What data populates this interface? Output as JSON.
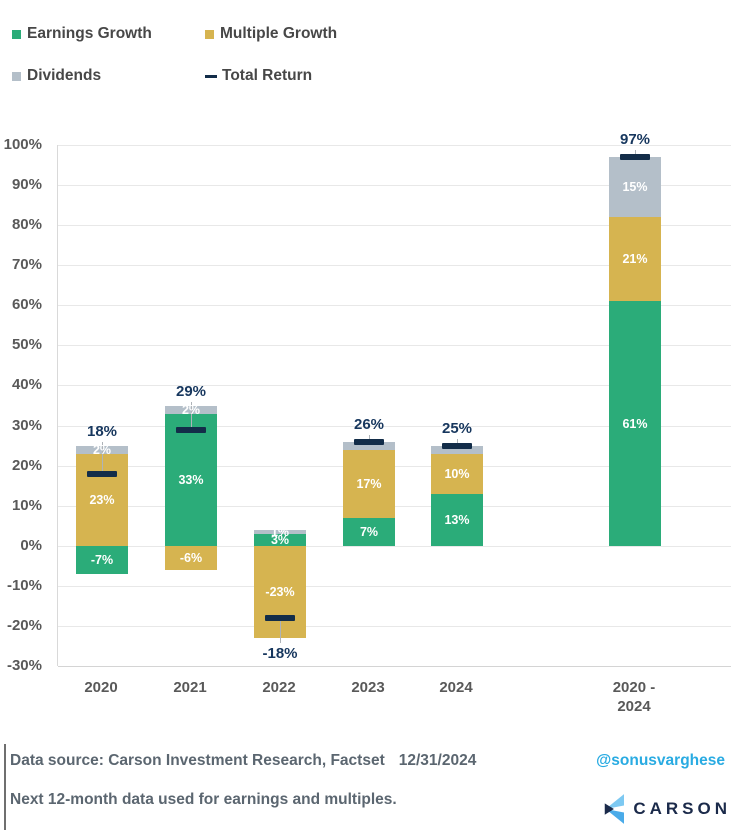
{
  "legend": {
    "items": [
      {
        "label": "Earnings Growth",
        "marker": "square",
        "color": "#2bac79"
      },
      {
        "label": "Multiple Growth",
        "marker": "square",
        "color": "#d6b450"
      },
      {
        "label": "Dividends",
        "marker": "square",
        "color": "#b4bfc9"
      },
      {
        "label": "Total Return",
        "marker": "dash",
        "color": "#132d49"
      }
    ]
  },
  "chart_data": {
    "type": "bar",
    "subtype": "stacked-bar-with-total-markers",
    "categories": [
      "2020",
      "2021",
      "2022",
      "2023",
      "2024",
      "2020 -\n2024"
    ],
    "series": [
      {
        "name": "Earnings Growth",
        "color": "#2bac79",
        "values": [
          -7,
          33,
          3,
          7,
          13,
          61
        ],
        "labels": [
          "-7%",
          "33%",
          "3%",
          "7%",
          "13%",
          "61%"
        ]
      },
      {
        "name": "Multiple Growth",
        "color": "#d6b450",
        "values": [
          23,
          -6,
          -23,
          17,
          10,
          21
        ],
        "labels": [
          "23%",
          "-6%",
          "-23%",
          "17%",
          "10%",
          "21%"
        ]
      },
      {
        "name": "Dividends",
        "color": "#b4bfc9",
        "values": [
          2,
          2,
          1,
          2,
          2,
          15
        ],
        "labels": [
          "2%",
          "2%",
          "1%",
          null,
          null,
          "15%"
        ]
      }
    ],
    "totals": {
      "name": "Total Return",
      "color": "#132d49",
      "label_color": "#17375e",
      "values": [
        18,
        29,
        -18,
        26,
        25,
        97
      ],
      "labels": [
        "18%",
        "29%",
        "-18%",
        "26%",
        "25%",
        "97%"
      ],
      "label_positions": [
        "above",
        "above",
        "below",
        "above",
        "above",
        "above"
      ]
    },
    "y_axis": {
      "min": -30,
      "max": 100,
      "step": 10,
      "tick_suffix": "%",
      "tick_labels": [
        "100%",
        "90%",
        "80%",
        "70%",
        "60%",
        "50%",
        "40%",
        "30%",
        "20%",
        "10%",
        "0%",
        "-10%",
        "-20%",
        "-30%"
      ]
    },
    "layout": {
      "grid": true,
      "legend_position": "top-left",
      "x_centers": [
        101,
        190,
        279,
        368,
        456,
        634
      ]
    }
  },
  "footer": {
    "source_label": "Data source: Carson Investment Research, Factset",
    "source_date": "12/31/2024",
    "note": "Next 12-month data used for earnings and multiples.",
    "handle": "@sonusvarghese",
    "handle_color": "#29abe2",
    "brand": "CARSON",
    "brand_color": "#1b2a4a"
  }
}
